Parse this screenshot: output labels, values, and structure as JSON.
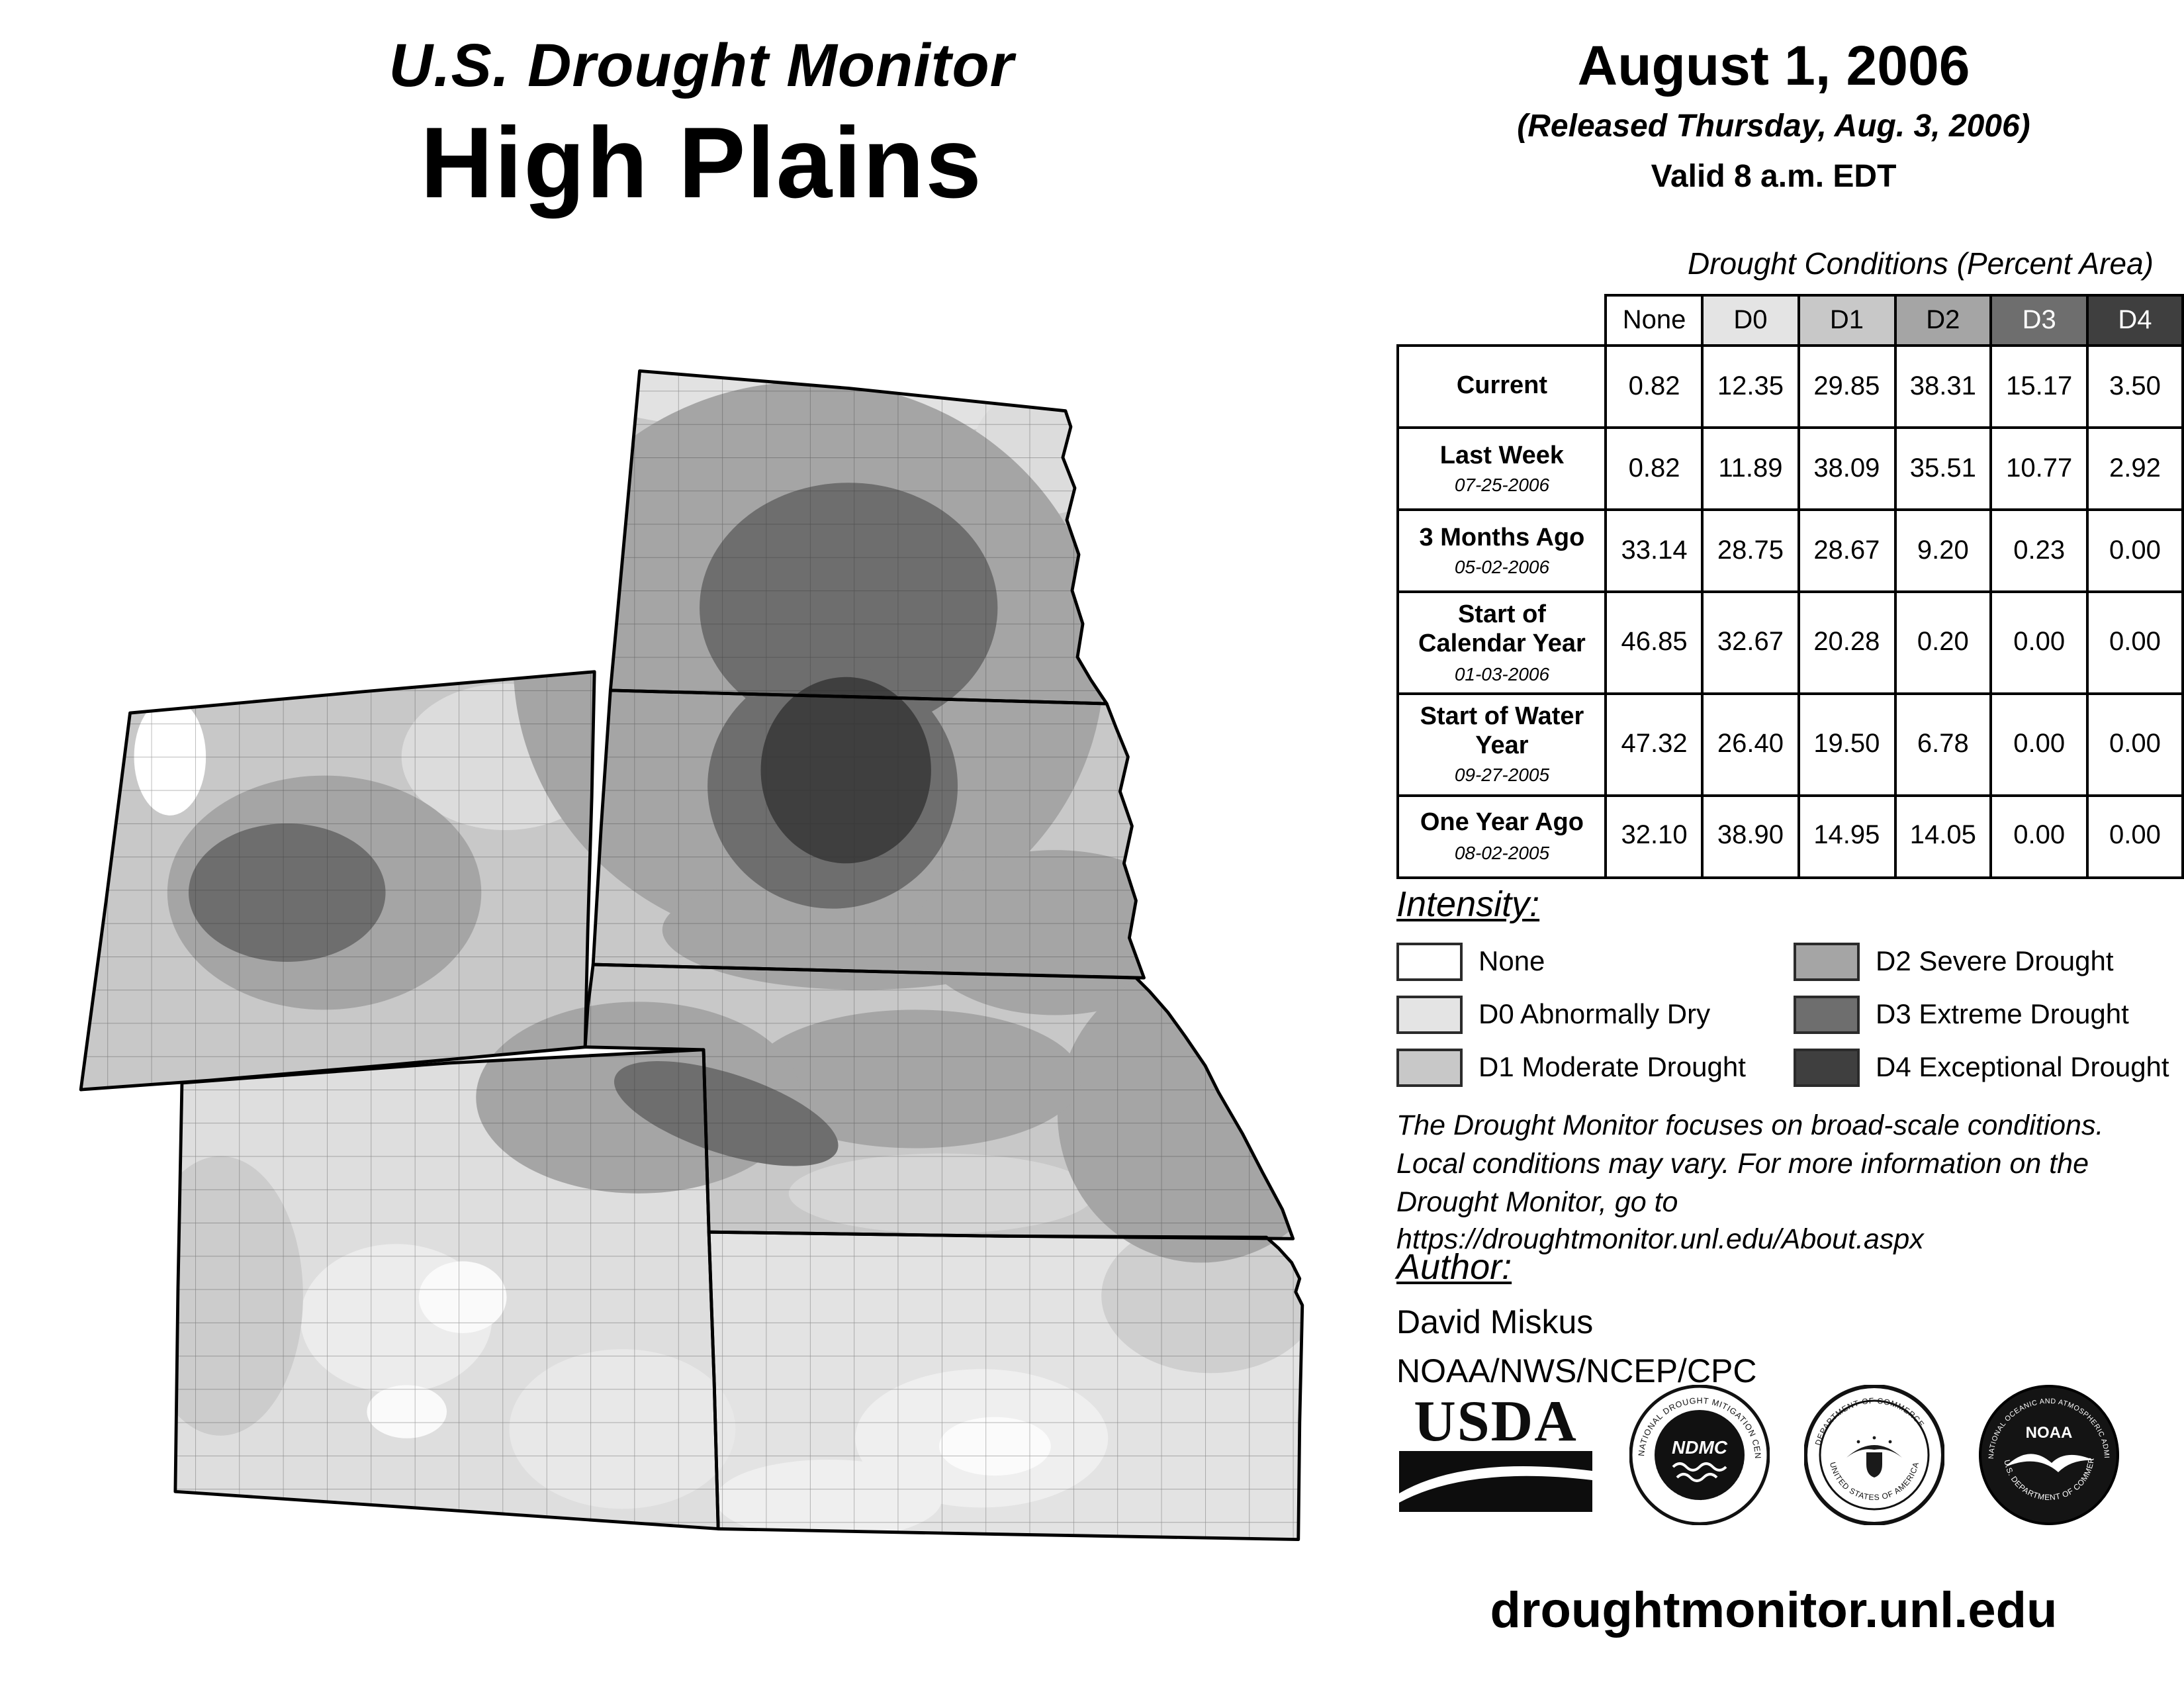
{
  "header": {
    "title_line1": "U.S. Drought Monitor",
    "title_line2": "High Plains",
    "date": "August 1, 2006",
    "released": "(Released Thursday, Aug. 3, 2006)",
    "valid": "Valid 8 a.m. EDT"
  },
  "table": {
    "title": "Drought Conditions (Percent Area)",
    "columns": [
      "None",
      "D0",
      "D1",
      "D2",
      "D3",
      "D4"
    ],
    "rows": [
      {
        "label": "Current",
        "sublabel": "",
        "values": [
          "0.82",
          "12.35",
          "29.85",
          "38.31",
          "15.17",
          "3.50"
        ]
      },
      {
        "label": "Last Week",
        "sublabel": "07-25-2006",
        "values": [
          "0.82",
          "11.89",
          "38.09",
          "35.51",
          "10.77",
          "2.92"
        ]
      },
      {
        "label": "3 Months Ago",
        "sublabel": "05-02-2006",
        "values": [
          "33.14",
          "28.75",
          "28.67",
          "9.20",
          "0.23",
          "0.00"
        ]
      },
      {
        "label": "Start of Calendar Year",
        "sublabel": "01-03-2006",
        "values": [
          "46.85",
          "32.67",
          "20.28",
          "0.20",
          "0.00",
          "0.00"
        ]
      },
      {
        "label": "Start of Water Year",
        "sublabel": "09-27-2005",
        "values": [
          "47.32",
          "26.40",
          "19.50",
          "6.78",
          "0.00",
          "0.00"
        ]
      },
      {
        "label": "One Year Ago",
        "sublabel": "08-02-2005",
        "values": [
          "32.10",
          "38.90",
          "14.95",
          "14.05",
          "0.00",
          "0.00"
        ]
      }
    ]
  },
  "legend": {
    "title": "Intensity:",
    "items": [
      {
        "code": "None",
        "label": "None",
        "color": "#FFFFFF",
        "text_color": "#000000"
      },
      {
        "code": "D0",
        "label": "D0 Abnormally Dry",
        "color": "#E4E4E4",
        "text_color": "#000000"
      },
      {
        "code": "D1",
        "label": "D1 Moderate Drought",
        "color": "#C8C8C8",
        "text_color": "#000000"
      },
      {
        "code": "D2",
        "label": "D2 Severe Drought",
        "color": "#A5A5A5",
        "text_color": "#000000"
      },
      {
        "code": "D3",
        "label": "D3 Extreme Drought",
        "color": "#6E6E6E",
        "text_color": "#FFFFFF"
      },
      {
        "code": "D4",
        "label": "D4 Exceptional Drought",
        "color": "#3F3F3F",
        "text_color": "#FFFFFF"
      }
    ]
  },
  "notes": {
    "disclaimer": "The Drought Monitor focuses on broad-scale conditions.\nLocal conditions may vary. For more information on the\nDrought Monitor, go to https://droughtmonitor.unl.edu/About.aspx"
  },
  "author": {
    "heading": "Author:",
    "name": "David Miskus",
    "org": "NOAA/NWS/NCEP/CPC"
  },
  "footer": {
    "url": "droughtmonitor.unl.edu"
  },
  "logos": {
    "usda": "USDA",
    "ndmc_center": "NDMC",
    "ndmc_ring_top": "NATIONAL DROUGHT MITIGATION CENTER",
    "ndmc_ring_bottom": "UNIVERSITY OF NEBRASKA",
    "commerce_ring_top": "DEPARTMENT OF COMMERCE",
    "commerce_ring_bottom": "UNITED STATES OF AMERICA",
    "noaa_center": "NOAA",
    "noaa_ring_top": "NATIONAL OCEANIC AND ATMOSPHERIC ADMINISTRATION",
    "noaa_ring_bottom": "U.S. DEPARTMENT OF COMMERCE"
  }
}
